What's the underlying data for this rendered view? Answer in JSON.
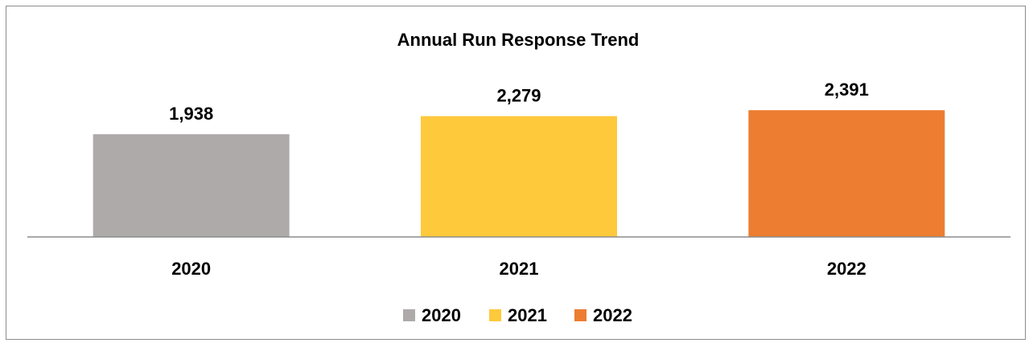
{
  "chart_data": {
    "type": "bar",
    "title": "Annual Run Response Trend",
    "categories": [
      "2020",
      "2021",
      "2022"
    ],
    "values": [
      1938,
      2279,
      2391
    ],
    "value_labels": [
      "1,938",
      "2,279",
      "2,391"
    ],
    "colors": [
      "#AEAAAA",
      "#FFC93C",
      "#ED7D31"
    ],
    "legend": {
      "position": "bottom",
      "entries": [
        "2020",
        "2021",
        "2022"
      ]
    },
    "xlabel": "",
    "ylabel": "",
    "grid": false,
    "ylim": [
      0,
      2500
    ]
  }
}
